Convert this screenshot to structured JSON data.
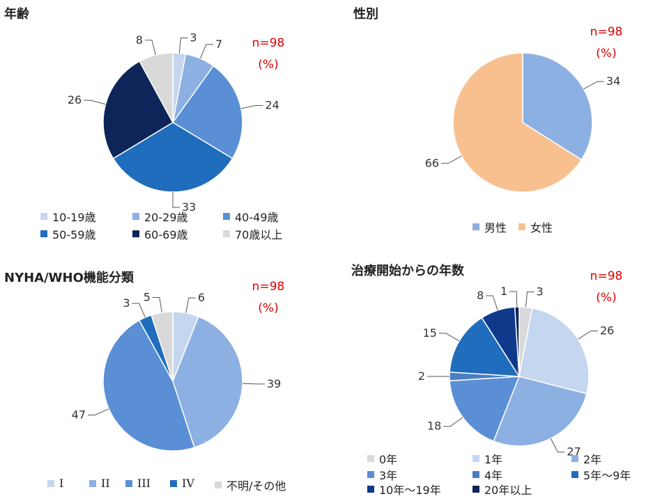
{
  "colors": {
    "note_red": "#e00000"
  },
  "chart_data": [
    {
      "type": "pie",
      "title": "年齢",
      "n_label": "n=98",
      "unit_label": "(%)",
      "slices": [
        {
          "label": "10-19歳",
          "value": 3,
          "color": "#c5d6ef"
        },
        {
          "label": "20-29歳",
          "value": 7,
          "color": "#8db0e2"
        },
        {
          "label": "40-49歳",
          "value": 24,
          "color": "#5a8fd6"
        },
        {
          "label": "50-59歳",
          "value": 33,
          "color": "#1f6dbc"
        },
        {
          "label": "60-69歳",
          "value": 26,
          "color": "#0d2559"
        },
        {
          "label": "70歳以上",
          "value": 8,
          "color": "#d9d9d9"
        }
      ]
    },
    {
      "type": "pie",
      "title": "性別",
      "n_label": "n=98",
      "unit_label": "(%)",
      "slices": [
        {
          "label": "男性",
          "value": 34,
          "color": "#8db0e2"
        },
        {
          "label": "女性",
          "value": 66,
          "color": "#f9c08f"
        }
      ]
    },
    {
      "type": "pie",
      "title": "NYHA/WHO機能分類",
      "n_label": "n=98",
      "unit_label": "(%)",
      "slices": [
        {
          "label": "I",
          "value": 6,
          "color": "#c5d6ef"
        },
        {
          "label": "II",
          "value": 39,
          "color": "#8db0e2"
        },
        {
          "label": "III",
          "value": 47,
          "color": "#5a8fd6"
        },
        {
          "label": "IV",
          "value": 3,
          "color": "#1f6dbc"
        },
        {
          "label": "不明/その他",
          "value": 5,
          "color": "#d9d9d9"
        }
      ]
    },
    {
      "type": "pie",
      "title": "治療開始からの年数",
      "n_label": "n=98",
      "unit_label": "(%)",
      "slices": [
        {
          "label": "0年",
          "value": 3,
          "color": "#d9d9d9"
        },
        {
          "label": "1年",
          "value": 26,
          "color": "#c5d6ef"
        },
        {
          "label": "2年",
          "value": 27,
          "color": "#8db0e2"
        },
        {
          "label": "3年",
          "value": 18,
          "color": "#5a8fd6"
        },
        {
          "label": "4年",
          "value": 2,
          "color": "#4a7ec2"
        },
        {
          "label": "5年～9年",
          "value": 15,
          "color": "#1f6dbc"
        },
        {
          "label": "10年～19年",
          "value": 8,
          "color": "#0f3a8c"
        },
        {
          "label": "20年以上",
          "value": 1,
          "color": "#0d2559"
        }
      ]
    }
  ]
}
